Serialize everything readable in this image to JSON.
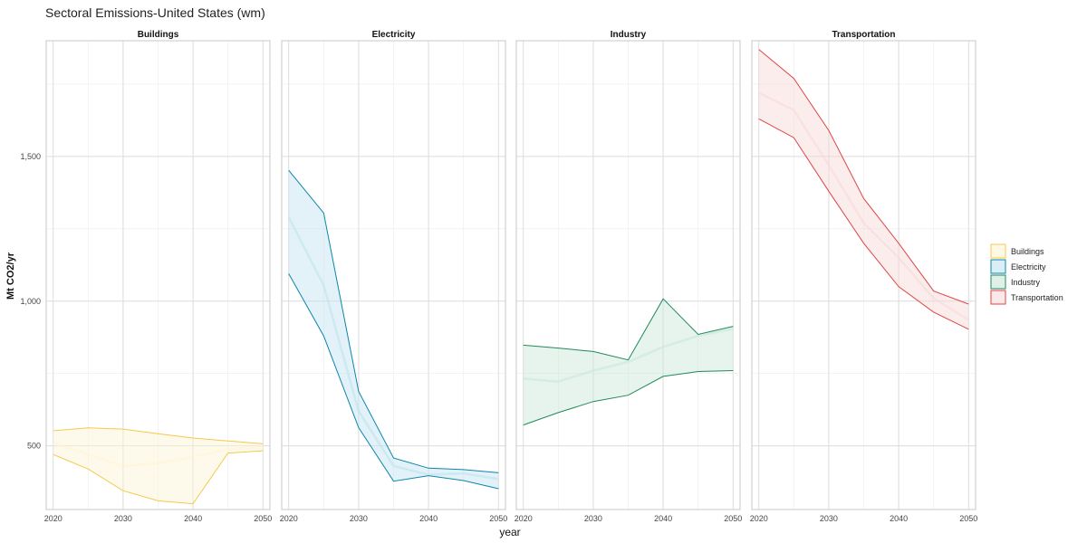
{
  "chart_data": {
    "type": "area",
    "title": "Sectoral Emissions-United States (wm)",
    "xlabel": "year",
    "ylabel": "Mt CO2/yr",
    "x_ticks": [
      2020,
      2030,
      2040,
      2050
    ],
    "x_tick_labels": [
      "2020",
      "2030",
      "2040",
      "2050"
    ],
    "y_ticks": [
      500,
      1000,
      1500
    ],
    "y_tick_labels": [
      "500",
      "1,000",
      "1,500"
    ],
    "xlim": [
      2019,
      2051
    ],
    "ylim": [
      280,
      1900
    ],
    "grid": true,
    "legend_position": "right",
    "x": [
      2020,
      2025,
      2030,
      2035,
      2040,
      2045,
      2050
    ],
    "series": [
      {
        "name": "Buildings",
        "color": "#f5c84c",
        "fill": "#fdf3d3",
        "upper": [
          552,
          562,
          558,
          542,
          527,
          517,
          507
        ],
        "lower": [
          470,
          420,
          345,
          310,
          300,
          475,
          483
        ],
        "middle": [
          510,
          470,
          430,
          440,
          462,
          488,
          495
        ]
      },
      {
        "name": "Electricity",
        "color": "#0d85ad",
        "fill": "#bfe2ef",
        "upper": [
          1452,
          1305,
          688,
          458,
          423,
          418,
          407
        ],
        "lower": [
          1095,
          880,
          563,
          378,
          397,
          380,
          352
        ],
        "middle": [
          1290,
          1055,
          620,
          430,
          400,
          405,
          385
        ]
      },
      {
        "name": "Industry",
        "color": "#1e8a5a",
        "fill": "#c9e6d8",
        "upper": [
          848,
          838,
          826,
          797,
          1008,
          885,
          913
        ],
        "lower": [
          572,
          615,
          653,
          675,
          740,
          757,
          760
        ],
        "middle": [
          733,
          722,
          760,
          790,
          842,
          880,
          905
        ]
      },
      {
        "name": "Transportation",
        "color": "#e04545",
        "fill": "#f8d8d8",
        "upper": [
          1870,
          1770,
          1590,
          1355,
          1200,
          1035,
          990
        ],
        "lower": [
          1630,
          1565,
          1380,
          1200,
          1050,
          962,
          903
        ],
        "middle": [
          1720,
          1660,
          1470,
          1270,
          1150,
          1010,
          935
        ]
      }
    ]
  }
}
